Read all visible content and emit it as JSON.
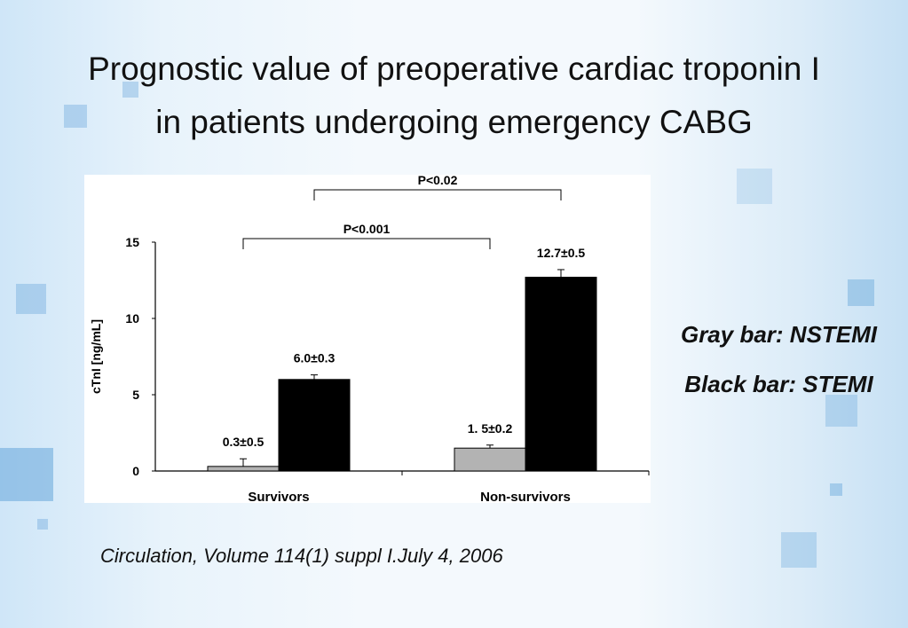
{
  "slide": {
    "title_line1": "Prognostic value of preoperative cardiac troponin I",
    "title_line2": "in patients undergoing emergency CABG",
    "legend_gray": "Gray bar: NSTEMI",
    "legend_black": "Black bar: STEMI",
    "citation": "Circulation, Volume 114(1) suppl I.July 4, 2006"
  },
  "chart_data": {
    "type": "bar",
    "title": "",
    "xlabel": "",
    "ylabel": "cTnI [ng/mL]",
    "ylim": [
      0,
      15
    ],
    "yticks": [
      "0",
      "5",
      "10",
      "15"
    ],
    "categories": [
      "Survivors",
      "Non-survivors"
    ],
    "series": [
      {
        "color": "#b3b3b3",
        "values": [
          0.3,
          1.5
        ],
        "errors": [
          0.5,
          0.2
        ],
        "labels": [
          "0.3±0.5",
          "1. 5±0.2"
        ]
      },
      {
        "color": "#000000",
        "values": [
          6.0,
          12.7
        ],
        "errors": [
          0.3,
          0.5
        ],
        "labels": [
          "6.0±0.3",
          "12.7±0.5"
        ]
      }
    ],
    "annotations": [
      {
        "text": "P<0.001",
        "from": "Survivors NSTEMI",
        "to": "Non-survivors NSTEMI"
      },
      {
        "text": "P<0.02",
        "from": "Survivors STEMI",
        "to": "Non-survivors STEMI"
      }
    ],
    "grid": false,
    "legend": "right of chart"
  },
  "colors": {
    "accent_blue": "#5b9fd8",
    "nstemi_gray": "#b3b3b3",
    "stemi_black": "#000000"
  }
}
